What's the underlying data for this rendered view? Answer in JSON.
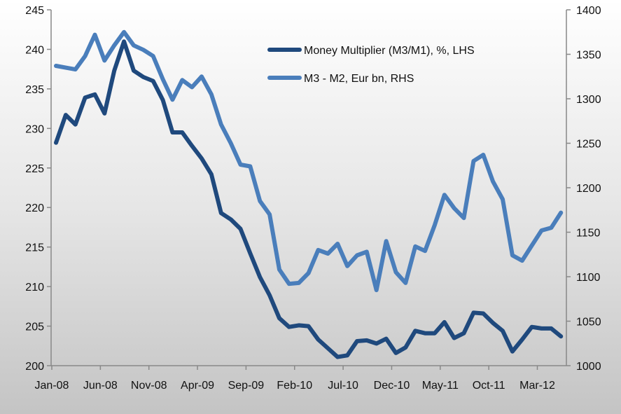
{
  "chart_data": {
    "type": "line",
    "title": "",
    "x": [
      "Jan-08",
      "Feb-08",
      "Mar-08",
      "Apr-08",
      "May-08",
      "Jun-08",
      "Jul-08",
      "Aug-08",
      "Sep-08",
      "Oct-08",
      "Nov-08",
      "Dec-08",
      "Jan-09",
      "Feb-09",
      "Mar-09",
      "Apr-09",
      "May-09",
      "Jun-09",
      "Jul-09",
      "Aug-09",
      "Sep-09",
      "Oct-09",
      "Nov-09",
      "Dec-09",
      "Jan-10",
      "Feb-10",
      "Mar-10",
      "Apr-10",
      "May-10",
      "Jun-10",
      "Jul-10",
      "Aug-10",
      "Sep-10",
      "Oct-10",
      "Nov-10",
      "Dec-10",
      "Jan-11",
      "Feb-11",
      "Mar-11",
      "Apr-11",
      "May-11",
      "Jun-11",
      "Jul-11",
      "Aug-11",
      "Sep-11",
      "Oct-11",
      "Nov-11",
      "Dec-11",
      "Jan-12",
      "Feb-12",
      "Mar-12",
      "Apr-12",
      "May-12"
    ],
    "x_tick_labels": [
      "Jan-08",
      "Jun-08",
      "Nov-08",
      "Apr-09",
      "Sep-09",
      "Feb-10",
      "Jul-10",
      "Dec-10",
      "May-11",
      "Oct-11",
      "Mar-12"
    ],
    "y_left": {
      "ylim": [
        200,
        245
      ],
      "ticks": [
        "200",
        "205",
        "210",
        "215",
        "220",
        "225",
        "230",
        "235",
        "240",
        "245"
      ]
    },
    "y_right": {
      "ylim": [
        1000,
        1400
      ],
      "ticks": [
        "1000",
        "1050",
        "1100",
        "1150",
        "1200",
        "1250",
        "1300",
        "1350",
        "1400"
      ]
    },
    "series": [
      {
        "name": "Money Multiplier (M3/M1), %, LHS",
        "axis": "left",
        "color": "#1f497d",
        "values": [
          228.2,
          231.7,
          230.5,
          233.9,
          234.3,
          231.9,
          237.3,
          241.0,
          237.3,
          236.5,
          236.0,
          233.6,
          229.5,
          229.5,
          227.8,
          226.2,
          224.2,
          219.3,
          218.5,
          217.3,
          214.2,
          211.2,
          208.9,
          206.0,
          204.9,
          205.1,
          205.0,
          203.3,
          202.2,
          201.1,
          201.3,
          203.1,
          203.2,
          202.8,
          203.4,
          201.6,
          202.3,
          204.4,
          204.1,
          204.1,
          205.5,
          203.5,
          204.1,
          206.7,
          206.6,
          205.4,
          204.4,
          201.8,
          203.3,
          204.9,
          204.7,
          204.7,
          203.7
        ]
      },
      {
        "name": "M3 - M2, Eur bn, RHS",
        "axis": "right",
        "color": "#4a7ebb",
        "values": [
          1337,
          1335,
          1333,
          1348,
          1372,
          1343,
          1360,
          1375,
          1360,
          1355,
          1348,
          1322,
          1299,
          1321,
          1313,
          1325,
          1305,
          1271,
          1250,
          1226,
          1224,
          1185,
          1170,
          1108,
          1092,
          1093,
          1104,
          1130,
          1126,
          1137,
          1112,
          1124,
          1128,
          1085,
          1140,
          1105,
          1093,
          1134,
          1129,
          1158,
          1192,
          1177,
          1166,
          1230,
          1237,
          1207,
          1187,
          1124,
          1118,
          1135,
          1152,
          1155,
          1172
        ]
      }
    ],
    "legend": "top-center",
    "grid": false
  }
}
